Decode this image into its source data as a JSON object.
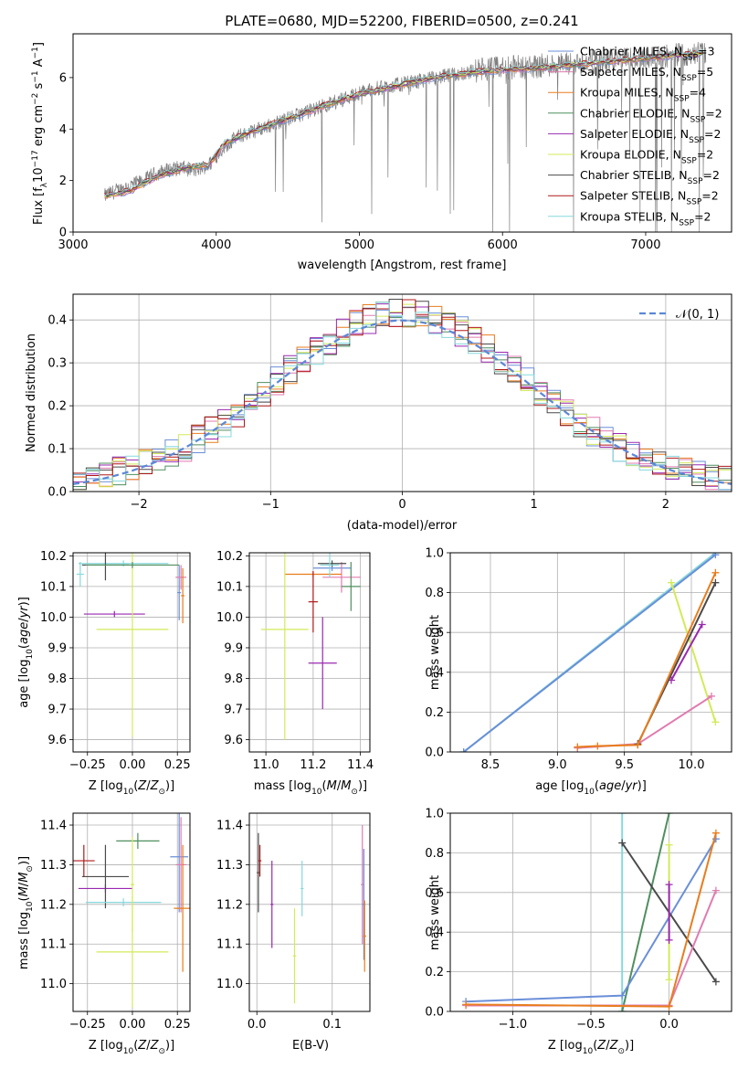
{
  "chart_data": [
    {
      "type": "line",
      "title": "PLATE=0680, MJD=52200, FIBERID=0500, z=0.241",
      "xlabel": "wavelength [Angstrom, rest frame]",
      "ylabel": "Flux [f_λ10^-17 erg cm^-2 s^-1 A^-1]",
      "xlim": [
        3000,
        7600
      ],
      "ylim": [
        0,
        7.7
      ],
      "xticks": [
        "3000",
        "4000",
        "5000",
        "6000",
        "7000"
      ],
      "yticks": [
        "0",
        "2",
        "4",
        "6"
      ],
      "grid": false,
      "legend_position": "top-right",
      "data_series": {
        "name": "",
        "color": "#808080",
        "x": [
          3220,
          3300,
          3400,
          3500,
          3550,
          3650,
          3750,
          3850,
          3950,
          4050,
          4150,
          4250,
          4350,
          4450,
          4550,
          4650,
          4750,
          4850,
          4950,
          5050,
          5150,
          5250,
          5350,
          5450,
          5550,
          5650,
          5750,
          5850,
          5950,
          6050,
          6150,
          6250,
          6350,
          6450,
          6550,
          6650,
          6750,
          6850,
          6950,
          7050,
          7150,
          7250,
          7350,
          7420
        ],
        "y": [
          1.4,
          1.6,
          1.8,
          2.0,
          2.2,
          2.4,
          2.5,
          2.4,
          2.6,
          3.3,
          3.7,
          3.9,
          4.1,
          4.3,
          4.5,
          4.7,
          4.9,
          5.1,
          5.3,
          5.5,
          5.6,
          5.7,
          5.8,
          5.9,
          6.0,
          6.1,
          6.2,
          6.3,
          6.35,
          6.4,
          6.4,
          6.45,
          6.5,
          6.5,
          6.6,
          6.6,
          6.7,
          6.7,
          6.8,
          6.8,
          6.85,
          6.9,
          6.95,
          7.0
        ]
      },
      "models": {
        "x": [
          3220,
          3400,
          3600,
          3800,
          3950,
          4050,
          4200,
          4400,
          4600,
          4800,
          5000,
          5200,
          5400,
          5600,
          5800,
          6000,
          6200,
          6400,
          6600,
          6800,
          7000,
          7200,
          7400
        ],
        "y": [
          1.4,
          1.6,
          2.2,
          2.5,
          2.6,
          3.4,
          3.8,
          4.2,
          4.6,
          5.0,
          5.35,
          5.6,
          5.85,
          6.05,
          6.2,
          6.3,
          6.35,
          6.45,
          6.55,
          6.65,
          6.75,
          6.85,
          6.95
        ]
      },
      "legend": [
        {
          "label": "Chabrier MILES, N",
          "sub": "SSP",
          "suffix": "=3",
          "color": "#6a8fd8"
        },
        {
          "label": "Salpeter MILES, N",
          "sub": "SSP",
          "suffix": "=5",
          "color": "#e07bb0"
        },
        {
          "label": "Kroupa MILES, N",
          "sub": "SSP",
          "suffix": "=4",
          "color": "#e87d1e"
        },
        {
          "label": "Chabrier ELODIE, N",
          "sub": "SSP",
          "suffix": "=2",
          "color": "#4f8f5f"
        },
        {
          "label": "Salpeter ELODIE, N",
          "sub": "SSP",
          "suffix": "=2",
          "color": "#9a28b0"
        },
        {
          "label": "Kroupa ELODIE, N",
          "sub": "SSP",
          "suffix": "=2",
          "color": "#d3ea5a"
        },
        {
          "label": "Chabrier STELIB, N",
          "sub": "SSP",
          "suffix": "=2",
          "color": "#4a4a4a"
        },
        {
          "label": "Salpeter STELIB, N",
          "sub": "SSP",
          "suffix": "=2",
          "color": "#b01818"
        },
        {
          "label": "Kroupa STELIB, N",
          "sub": "SSP",
          "suffix": "=2",
          "color": "#86d8dc"
        }
      ]
    },
    {
      "type": "line",
      "xlabel": "(data-model)/error",
      "ylabel": "Normed distribution",
      "xlim": [
        -2.5,
        2.5
      ],
      "ylim": [
        0,
        0.46
      ],
      "xticks": [
        "−2",
        "−1",
        "0",
        "1",
        "2"
      ],
      "yticks": [
        "0.0",
        "0.1",
        "0.2",
        "0.3",
        "0.4"
      ],
      "grid": true,
      "legend_position": "top-right",
      "reference": {
        "label": "𝒩(0, 1)",
        "color": "#5b87d8"
      }
    },
    {
      "type": "scatter",
      "xlabel": "Z [log10(Z/Z⊙)]",
      "ylabel": "age  [log10(age/yr)]",
      "xlim": [
        -0.33,
        0.32
      ],
      "ylim": [
        9.56,
        10.21
      ],
      "xticks": [
        "−0.25",
        "0.00",
        "0.25"
      ],
      "yticks": [
        "9.6",
        "9.7",
        "9.8",
        "9.9",
        "10.0",
        "10.1",
        "10.2"
      ],
      "grid": true
    },
    {
      "type": "scatter",
      "xlabel": "mass [log10(M/M⊙)]",
      "xlim": [
        10.93,
        11.44
      ],
      "ylim": [
        9.56,
        10.21
      ],
      "xticks": [
        "11.0",
        "11.2",
        "11.4"
      ],
      "yticks": [
        "9.6",
        "9.7",
        "9.8",
        "9.9",
        "10.0",
        "10.1",
        "10.2"
      ],
      "grid": true
    },
    {
      "type": "line",
      "xlabel": "age  [log10(age/yr)]",
      "ylabel": "mass weight",
      "xlim": [
        8.2,
        10.3
      ],
      "ylim": [
        0,
        1
      ],
      "xticks": [
        "8.5",
        "9.0",
        "9.5",
        "10.0"
      ],
      "yticks": [
        "0.0",
        "0.2",
        "0.4",
        "0.6",
        "0.8",
        "1.0"
      ],
      "grid": true,
      "series": [
        {
          "color": "#86d8dc",
          "x": [
            8.3,
            10.18
          ],
          "y": [
            0.0,
            1.0
          ]
        },
        {
          "color": "#6a8fd8",
          "x": [
            8.3,
            10.18
          ],
          "y": [
            0.0,
            0.99
          ]
        },
        {
          "color": "#d3ea5a",
          "x": [
            9.85,
            10.18
          ],
          "y": [
            0.85,
            0.15
          ]
        },
        {
          "color": "#9a28b0",
          "x": [
            9.85,
            10.08
          ],
          "y": [
            0.36,
            0.64
          ]
        },
        {
          "color": "#e07bb0",
          "x": [
            9.15,
            9.6,
            10.15
          ],
          "y": [
            0.02,
            0.04,
            0.28
          ]
        },
        {
          "color": "#4a4a4a",
          "x": [
            9.6,
            10.18
          ],
          "y": [
            0.04,
            0.85
          ]
        },
        {
          "color": "#e87d1e",
          "x": [
            9.15,
            9.3,
            9.6,
            10.18
          ],
          "y": [
            0.025,
            0.03,
            0.035,
            0.9
          ]
        }
      ]
    },
    {
      "type": "scatter",
      "xlabel": "Z [log10(Z/Z⊙)]",
      "ylabel": "mass [log10(M/M⊙)]",
      "xlim": [
        -0.33,
        0.32
      ],
      "ylim": [
        10.93,
        11.43
      ],
      "xticks": [
        "−0.25",
        "0.00",
        "0.25"
      ],
      "yticks": [
        "11.0",
        "11.1",
        "11.2",
        "11.3",
        "11.4"
      ],
      "grid": true
    },
    {
      "type": "scatter",
      "xlabel": "E(B-V)",
      "xlim": [
        -0.01,
        0.15
      ],
      "ylim": [
        10.93,
        11.43
      ],
      "xticks": [
        "0.0",
        "0.1"
      ],
      "yticks": [
        "11.0",
        "11.1",
        "11.2",
        "11.3",
        "11.4"
      ],
      "grid": true
    },
    {
      "type": "line",
      "xlabel": "Z [log10(Z/Z⊙)]",
      "ylabel": "mass weight",
      "xlim": [
        -1.4,
        0.4
      ],
      "ylim": [
        0,
        1
      ],
      "xticks": [
        "−1.0",
        "−0.5",
        "0.0"
      ],
      "yticks": [
        "0.0",
        "0.2",
        "0.4",
        "0.6",
        "0.8",
        "1.0"
      ],
      "grid": true,
      "series": [
        {
          "color": "#86d8dc",
          "x": [
            -0.3,
            -0.3
          ],
          "y": [
            0.0,
            1.0
          ]
        },
        {
          "color": "#4f8f5f",
          "x": [
            -0.3,
            0.0
          ],
          "y": [
            0.0,
            1.0
          ]
        },
        {
          "color": "#6a8fd8",
          "x": [
            -1.3,
            -0.3,
            0.3
          ],
          "y": [
            0.05,
            0.08,
            0.87
          ]
        },
        {
          "color": "#4a4a4a",
          "x": [
            -0.3,
            0.3
          ],
          "y": [
            0.85,
            0.15
          ]
        },
        {
          "color": "#e07bb0",
          "x": [
            -1.3,
            0.0,
            0.3
          ],
          "y": [
            0.03,
            0.03,
            0.61
          ]
        },
        {
          "color": "#e87d1e",
          "x": [
            -1.3,
            0.0,
            0.3
          ],
          "y": [
            0.035,
            0.025,
            0.9
          ]
        },
        {
          "color": "#d3ea5a",
          "x": [
            0.0,
            0.0
          ],
          "y": [
            0.16,
            0.84
          ]
        },
        {
          "color": "#9a28b0",
          "x": [
            0.0,
            0.0
          ],
          "y": [
            0.36,
            0.64
          ]
        }
      ]
    }
  ]
}
